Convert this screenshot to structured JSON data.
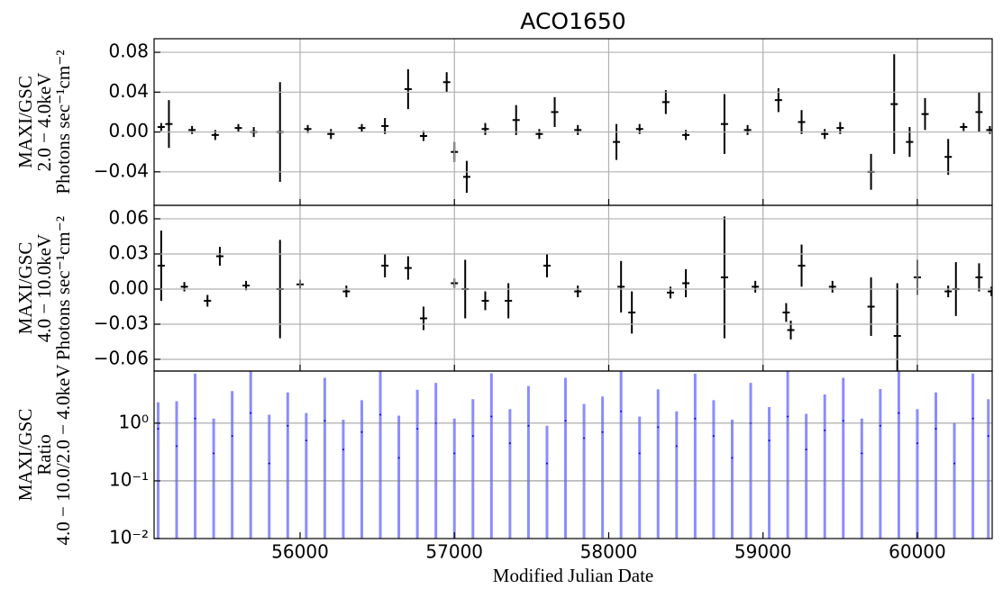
{
  "chart_data": [
    {
      "type": "errorbar",
      "title": "ACO1650",
      "ylabel": [
        "MAXI/GSC",
        "2.0 − 4.0keV",
        "Photons sec⁻¹cm⁻²"
      ],
      "color": "#000000",
      "grid": true,
      "xlim": [
        55054,
        60485
      ],
      "xticks": [
        56000,
        57000,
        58000,
        59000,
        60000
      ],
      "ylim": [
        -0.0736,
        0.0936
      ],
      "yticks": [
        {
          "value": 0.08,
          "label": "0.08"
        },
        0.04,
        {
          "value": 0,
          "label": "0.00"
        },
        {
          "value": -0.04,
          "label": "−0.04"
        }
      ],
      "x": [
        55100,
        55150,
        55300,
        55450,
        55600,
        55700,
        55870,
        56050,
        56200,
        56400,
        56550,
        56700,
        56800,
        56950,
        57000,
        57080,
        57200,
        57400,
        57550,
        57650,
        57800,
        58050,
        58200,
        58370,
        58500,
        58750,
        58900,
        59100,
        59250,
        59400,
        59500,
        59700,
        59850,
        59950,
        60050,
        60200,
        60300,
        60400,
        60470
      ],
      "values": [
        0.005,
        0.008,
        0.002,
        -0.003,
        0.004,
        0,
        0,
        0.003,
        -0.002,
        0.004,
        0.006,
        0.043,
        -0.004,
        0.05,
        -0.02,
        -0.045,
        0.003,
        0.012,
        -0.002,
        0.02,
        0.002,
        -0.01,
        0.003,
        0.03,
        -0.003,
        0.008,
        0.002,
        0.032,
        0.01,
        -0.002,
        0.004,
        -0.04,
        0.028,
        -0.01,
        0.018,
        -0.025,
        0.005,
        0.02,
        0.002
      ],
      "errors": [
        0.004,
        0.024,
        0.004,
        0.005,
        0.004,
        0.005,
        0.05,
        0.004,
        0.005,
        0.004,
        0.008,
        0.02,
        0.005,
        0.01,
        0.01,
        0.016,
        0.006,
        0.015,
        0.005,
        0.015,
        0.005,
        0.018,
        0.005,
        0.012,
        0.005,
        0.03,
        0.005,
        0.012,
        0.012,
        0.005,
        0.006,
        0.018,
        0.05,
        0.015,
        0.016,
        0.018,
        0.004,
        0.02,
        0.004
      ]
    },
    {
      "type": "errorbar",
      "ylabel": [
        "MAXI/GSC",
        "4.0 − 10.0keV",
        "Photons sec⁻¹cm⁻²"
      ],
      "color": "#000000",
      "grid": true,
      "xlim": [
        55054,
        60485
      ],
      "xticks": [
        56000,
        57000,
        58000,
        59000,
        60000
      ],
      "ylim": [
        -0.07,
        0.0715
      ],
      "yticks": [
        0.06,
        0.03,
        {
          "value": 0,
          "label": "0.00"
        },
        {
          "value": -0.03,
          "label": "−0.03"
        },
        {
          "value": -0.06,
          "label": "−0.06"
        }
      ],
      "x": [
        55100,
        55250,
        55400,
        55480,
        55650,
        55870,
        56000,
        56300,
        56550,
        56700,
        56800,
        57000,
        57070,
        57200,
        57350,
        57600,
        57800,
        58080,
        58150,
        58400,
        58500,
        58750,
        58950,
        59150,
        59180,
        59250,
        59450,
        59700,
        59870,
        60000,
        60200,
        60250,
        60400,
        60480
      ],
      "values": [
        0.02,
        0.002,
        -0.01,
        0.028,
        0.003,
        0,
        0.004,
        -0.002,
        0.02,
        0.018,
        -0.025,
        0.005,
        0,
        -0.01,
        -0.01,
        0.02,
        -0.002,
        0.002,
        -0.02,
        -0.003,
        0.005,
        0.01,
        0.002,
        -0.02,
        -0.035,
        0.02,
        0.002,
        -0.015,
        -0.04,
        0.01,
        -0.002,
        0,
        0.01,
        -0.002
      ],
      "errors": [
        0.03,
        0.004,
        0.005,
        0.008,
        0.004,
        0.042,
        0.004,
        0.005,
        0.01,
        0.01,
        0.01,
        0.004,
        0.025,
        0.008,
        0.015,
        0.01,
        0.005,
        0.022,
        0.018,
        0.005,
        0.012,
        0.052,
        0.005,
        0.008,
        0.008,
        0.018,
        0.005,
        0.025,
        0.045,
        0.015,
        0.005,
        0.023,
        0.012,
        0.004
      ]
    },
    {
      "type": "errorbar",
      "ylabel": [
        "MAXI/GSC",
        "Ratio",
        "4.0 − 10.0/2.0 − 4.0keV"
      ],
      "xlabel": "Modified Julian Date",
      "color": "#0000ff",
      "grid": true,
      "log": true,
      "xlim": [
        55054,
        60485
      ],
      "xticks": [
        56000,
        57000,
        58000,
        59000,
        60000
      ],
      "ylim": [
        0.01,
        8
      ],
      "yticks": [
        {
          "value": 1,
          "label": "10⁰"
        },
        {
          "value": 0.1,
          "label": "10⁻¹"
        },
        {
          "value": 0.01,
          "label": "10⁻²"
        }
      ],
      "x": [
        55080,
        55200,
        55320,
        55440,
        55560,
        55680,
        55800,
        55920,
        56040,
        56160,
        56280,
        56400,
        56520,
        56640,
        56760,
        56880,
        57000,
        57120,
        57240,
        57360,
        57480,
        57600,
        57720,
        57840,
        57960,
        58080,
        58200,
        58320,
        58440,
        58560,
        58680,
        58800,
        58920,
        59040,
        59160,
        59280,
        59400,
        59520,
        59640,
        59760,
        59880,
        60000,
        60120,
        60240,
        60360,
        60460
      ],
      "values": [
        0.8,
        0.4,
        1.2,
        0.3,
        0.6,
        1.5,
        0.2,
        0.9,
        0.5,
        1.1,
        0.35,
        0.7,
        1.4,
        0.25,
        0.8,
        1.0,
        0.3,
        0.6,
        1.3,
        0.45,
        0.9,
        0.2,
        1.1,
        0.55,
        0.7,
        1.6,
        0.3,
        0.85,
        0.4,
        1.2,
        0.6,
        0.25,
        1.0,
        0.5,
        1.3,
        0.35,
        0.75,
        1.1,
        0.3,
        0.9,
        1.5,
        0.45,
        0.8,
        0.2,
        1.2,
        0.6
      ],
      "errors": [
        1.5,
        2,
        6,
        0.9,
        3,
        8,
        1.2,
        2.5,
        1,
        5,
        0.8,
        1.8,
        7,
        1.1,
        3,
        4,
        0.9,
        2,
        6,
        1.3,
        3.5,
        0.7,
        5,
        1.6,
        2.2,
        8,
        1,
        3,
        1.2,
        6,
        1.9,
        0.9,
        4,
        1.4,
        7,
        1.1,
        2.4,
        5,
        0.9,
        3,
        8,
        1.3,
        2.6,
        0.8,
        6,
        2
      ]
    }
  ]
}
